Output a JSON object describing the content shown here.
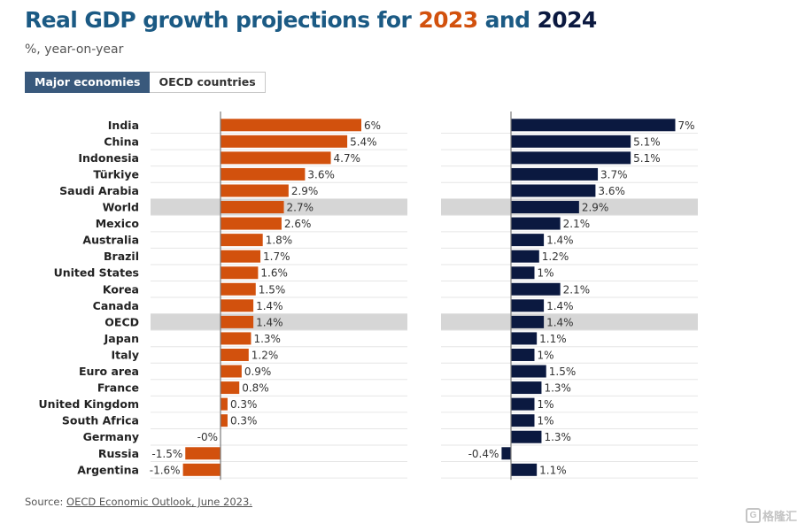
{
  "header": {
    "title_main": "Real GDP growth projections for",
    "year1": "2023",
    "and_word": "and",
    "year2": "2024",
    "subtitle": "%, year-on-year"
  },
  "tabs": [
    {
      "label": "Major economies",
      "active": true
    },
    {
      "label": "OECD countries",
      "active": false
    }
  ],
  "footer": {
    "source_label": "Source:",
    "source_link": "OECD Economic Outlook, June 2023."
  },
  "watermark": {
    "icon": "G",
    "text": "格隆汇"
  },
  "colors": {
    "series_2023": "#d2510d",
    "series_2024": "#0b1940",
    "highlight_row": "#d6d6d6",
    "gridline": "#e6e6e6",
    "axis_line": "#7a7a7a"
  },
  "chart_data": {
    "type": "bar",
    "orientation": "horizontal",
    "title": "Real GDP growth projections for 2023 and 2024",
    "subtitle": "%, year-on-year",
    "grid": true,
    "categories": [
      "India",
      "China",
      "Indonesia",
      "Türkiye",
      "Saudi Arabia",
      "World",
      "Mexico",
      "Australia",
      "Brazil",
      "United States",
      "Korea",
      "Canada",
      "OECD",
      "Japan",
      "Italy",
      "Euro area",
      "France",
      "United Kingdom",
      "South Africa",
      "Germany",
      "Russia",
      "Argentina"
    ],
    "highlighted": [
      "World",
      "OECD"
    ],
    "series": [
      {
        "name": "2023",
        "values": [
          6,
          5.4,
          4.7,
          3.6,
          2.9,
          2.7,
          2.6,
          1.8,
          1.7,
          1.6,
          1.5,
          1.4,
          1.4,
          1.3,
          1.2,
          0.9,
          0.8,
          0.3,
          0.3,
          0,
          -1.5,
          -1.6
        ],
        "labels": [
          "6%",
          "5.4%",
          "4.7%",
          "3.6%",
          "2.9%",
          "2.7%",
          "2.6%",
          "1.8%",
          "1.7%",
          "1.6%",
          "1.5%",
          "1.4%",
          "1.4%",
          "1.3%",
          "1.2%",
          "0.9%",
          "0.8%",
          "0.3%",
          "0.3%",
          "-0%",
          "-1.5%",
          "-1.6%"
        ]
      },
      {
        "name": "2024",
        "values": [
          7,
          5.1,
          5.1,
          3.7,
          3.6,
          2.9,
          2.1,
          1.4,
          1.2,
          1,
          2.1,
          1.4,
          1.4,
          1.1,
          1,
          1.5,
          1.3,
          1,
          1,
          1.3,
          -0.4,
          1.1
        ],
        "labels": [
          "7%",
          "5.1%",
          "5.1%",
          "3.7%",
          "3.6%",
          "2.9%",
          "2.1%",
          "1.4%",
          "1.2%",
          "1%",
          "2.1%",
          "1.4%",
          "1.4%",
          "1.1%",
          "1%",
          "1.5%",
          "1.3%",
          "1%",
          "1%",
          "1.3%",
          "-0.4%",
          "1.1%"
        ]
      }
    ]
  }
}
